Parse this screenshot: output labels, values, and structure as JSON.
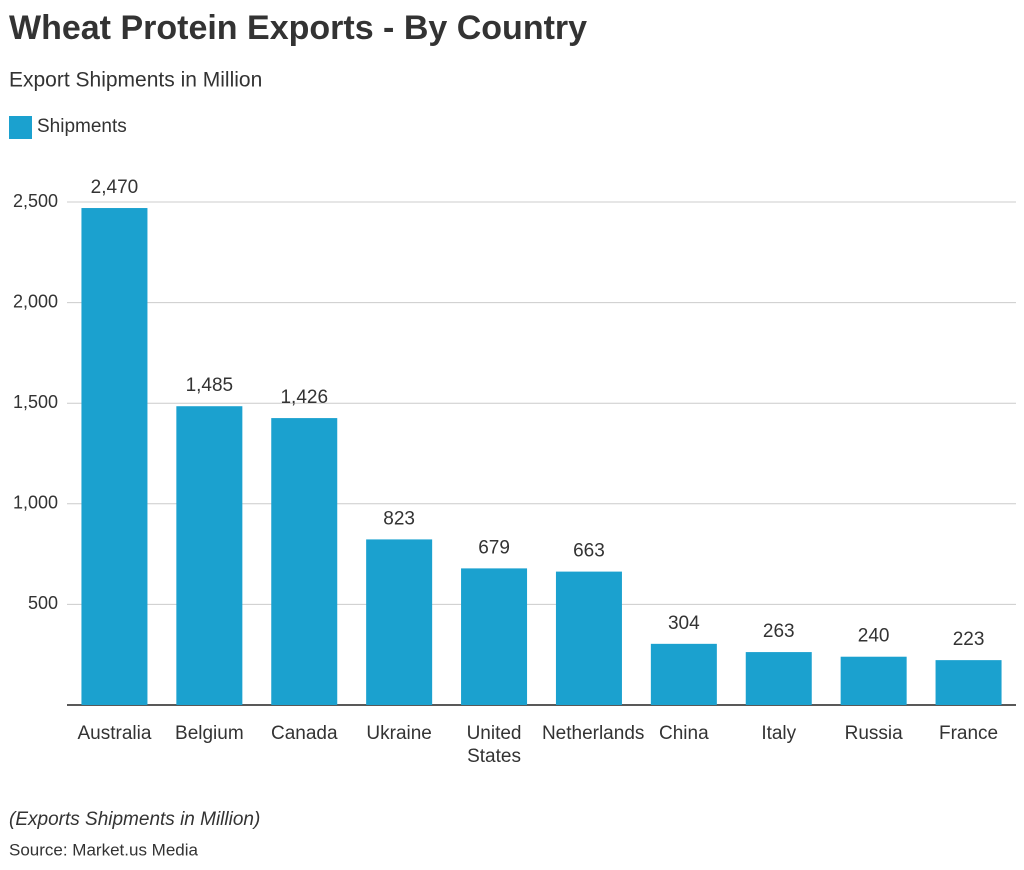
{
  "chart_data": {
    "type": "bar",
    "title": "Wheat Protein Exports - By Country",
    "subtitle": "Export Shipments in Million",
    "categories": [
      "Australia",
      "Belgium",
      "Canada",
      "Ukraine",
      "United States",
      "Netherlands",
      "China",
      "Italy",
      "Russia",
      "France"
    ],
    "series": [
      {
        "name": "Shipments",
        "color": "#1ba1cf",
        "values": [
          2470,
          1485,
          1426,
          823,
          679,
          663,
          304,
          263,
          240,
          223
        ],
        "value_labels": [
          "2,470",
          "1,485",
          "1,426",
          "823",
          "679",
          "663",
          "304",
          "263",
          "240",
          "223"
        ]
      }
    ],
    "ylim": [
      0,
      2500
    ],
    "yticks": [
      500,
      {
        "value": 1000,
        "label": "1,000"
      },
      {
        "value": 1500,
        "label": "1,500"
      },
      {
        "value": 2000,
        "label": "2,000"
      },
      {
        "value": 2500,
        "label": "2,500"
      }
    ],
    "grid": true,
    "legend": "top-left",
    "note": "(Exports Shipments in Million)",
    "source": "Source: Market.us Media"
  }
}
